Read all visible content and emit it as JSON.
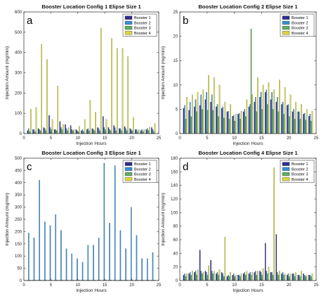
{
  "chart_data": [
    {
      "type": "bar",
      "panel_label": "a",
      "title": "Booster Location Config 1 Elipse Size 1",
      "xlabel": "Injection Hours",
      "ylabel": "Injection Amount (mg/min)",
      "xlim": [
        0,
        25
      ],
      "ylim": [
        0,
        600
      ],
      "xticks": [
        0,
        5,
        10,
        15,
        20,
        25
      ],
      "yticks": [
        0,
        100,
        200,
        300,
        400,
        500,
        600
      ],
      "legend_position": "top-right",
      "categories": [
        1,
        2,
        3,
        4,
        5,
        6,
        7,
        8,
        9,
        10,
        11,
        12,
        13,
        14,
        15,
        16,
        17,
        18,
        19,
        20,
        21,
        22,
        23,
        24
      ],
      "series": [
        {
          "name": "Booster 1",
          "color": "#2e2b8f",
          "values": [
            15,
            20,
            25,
            30,
            90,
            20,
            60,
            45,
            40,
            20,
            15,
            20,
            25,
            30,
            85,
            30,
            40,
            25,
            35,
            25,
            20,
            15,
            20,
            30
          ]
        },
        {
          "name": "Booster 2",
          "color": "#3a8fd0",
          "values": [
            25,
            20,
            20,
            25,
            30,
            20,
            30,
            25,
            20,
            15,
            20,
            25,
            20,
            25,
            30,
            20,
            30,
            25,
            25,
            20,
            20,
            20,
            25,
            20
          ]
        },
        {
          "name": "Booster 3",
          "color": "#5fae62",
          "values": [
            10,
            10,
            15,
            15,
            20,
            15,
            20,
            15,
            15,
            10,
            10,
            15,
            15,
            15,
            20,
            15,
            15,
            15,
            15,
            15,
            10,
            10,
            15,
            10
          ]
        },
        {
          "name": "Booster 4",
          "color": "#d6d640",
          "values": [
            120,
            130,
            440,
            365,
            70,
            235,
            45,
            30,
            20,
            35,
            70,
            165,
            105,
            520,
            70,
            470,
            420,
            420,
            380,
            80,
            20,
            20,
            30,
            50
          ]
        }
      ]
    },
    {
      "type": "bar",
      "panel_label": "b",
      "title": "Booster Location Config 2 Elipse Size 1",
      "xlabel": "Injection Hours",
      "ylabel": "Injection Amount (mg/min)",
      "xlim": [
        0,
        25
      ],
      "ylim": [
        0,
        25
      ],
      "xticks": [
        0,
        5,
        10,
        15,
        20,
        25
      ],
      "yticks": [
        0,
        5,
        10,
        15,
        20,
        25
      ],
      "legend_position": "top-right",
      "categories": [
        1,
        2,
        3,
        4,
        5,
        6,
        7,
        8,
        9,
        10,
        11,
        12,
        13,
        14,
        15,
        16,
        17,
        18,
        19,
        20,
        21,
        22,
        23,
        24
      ],
      "series": [
        {
          "name": "Booster 1",
          "color": "#2e2b8f",
          "values": [
            5.2,
            4.8,
            5.5,
            5.8,
            7.0,
            6.5,
            5.5,
            5.2,
            4.5,
            3.6,
            4.0,
            4.5,
            5.5,
            6.5,
            7.5,
            8.5,
            7.0,
            6.5,
            6.0,
            5.8,
            4.5,
            4.5,
            4.0,
            3.6
          ]
        },
        {
          "name": "Booster 2",
          "color": "#3a8fd0",
          "values": [
            5.8,
            6.5,
            7.0,
            8.0,
            8.5,
            8.0,
            6.0,
            5.5,
            4.6,
            3.8,
            4.2,
            5.0,
            6.0,
            7.5,
            8.5,
            9.0,
            8.5,
            7.5,
            6.5,
            6.0,
            5.0,
            4.5,
            4.2,
            4.0
          ]
        },
        {
          "name": "Booster 3",
          "color": "#5fae62",
          "values": [
            3.0,
            3.5,
            4.5,
            5.0,
            4.8,
            4.8,
            3.5,
            3.2,
            3.0,
            2.6,
            3.0,
            3.5,
            21.5,
            4.5,
            5.0,
            6.0,
            5.0,
            4.5,
            4.0,
            3.5,
            3.0,
            3.0,
            2.8,
            2.6
          ]
        },
        {
          "name": "Booster 4",
          "color": "#d6d640",
          "values": [
            7.5,
            8.0,
            8.5,
            9.0,
            12.0,
            11.5,
            10.0,
            6.5,
            6.0,
            4.0,
            4.6,
            7.0,
            8.0,
            11.5,
            10.0,
            10.5,
            9.0,
            11.0,
            9.5,
            8.0,
            6.5,
            6.0,
            5.0,
            4.6
          ]
        }
      ]
    },
    {
      "type": "bar",
      "panel_label": "c",
      "title": "Booster Location Config 3 Elipse Size 1",
      "xlabel": "Injection Hours",
      "ylabel": "Injection Amount (mg/min)",
      "xlim": [
        0,
        25
      ],
      "ylim": [
        0,
        500
      ],
      "xticks": [
        0,
        5,
        10,
        15,
        20,
        25
      ],
      "yticks": [
        0,
        50,
        100,
        150,
        200,
        250,
        300,
        350,
        400,
        450,
        500
      ],
      "legend_position": "top-right",
      "categories": [
        1,
        2,
        3,
        4,
        5,
        6,
        7,
        8,
        9,
        10,
        11,
        12,
        13,
        14,
        15,
        16,
        17,
        18,
        19,
        20,
        21,
        22,
        23,
        24
      ],
      "series": [
        {
          "name": "Booster 1",
          "color": "#2e2b8f",
          "values": [
            2,
            2,
            2,
            2,
            2,
            2,
            2,
            2,
            2,
            2,
            2,
            2,
            2,
            2,
            2,
            2,
            2,
            2,
            2,
            2,
            2,
            2,
            2,
            2
          ]
        },
        {
          "name": "Booster 2",
          "color": "#3a8fd0",
          "values": [
            195,
            175,
            410,
            240,
            225,
            270,
            205,
            130,
            110,
            90,
            75,
            145,
            145,
            175,
            480,
            235,
            470,
            205,
            130,
            300,
            185,
            90,
            90,
            115
          ]
        },
        {
          "name": "Booster 3",
          "color": "#5fae62",
          "values": [
            2,
            2,
            2,
            2,
            2,
            2,
            2,
            2,
            2,
            2,
            2,
            2,
            2,
            2,
            2,
            2,
            2,
            2,
            2,
            2,
            2,
            2,
            2,
            2
          ]
        },
        {
          "name": "Booster 4",
          "color": "#d6d640",
          "values": [
            2,
            2,
            2,
            2,
            2,
            2,
            2,
            2,
            2,
            2,
            2,
            2,
            2,
            2,
            2,
            2,
            2,
            2,
            2,
            2,
            2,
            2,
            2,
            2
          ]
        }
      ]
    },
    {
      "type": "bar",
      "panel_label": "d",
      "title": "Booster Location Config 4 Elipse Size 1",
      "xlabel": "Injection Hours",
      "ylabel": "Injection Amount (mg/min)",
      "xlim": [
        0,
        25
      ],
      "ylim": [
        0,
        180
      ],
      "xticks": [
        0,
        5,
        10,
        15,
        20,
        25
      ],
      "yticks": [
        0,
        20,
        40,
        60,
        80,
        100,
        120,
        140,
        160,
        180
      ],
      "legend_position": "top-right",
      "categories": [
        1,
        2,
        3,
        4,
        5,
        6,
        7,
        8,
        9,
        10,
        11,
        12,
        13,
        14,
        15,
        16,
        17,
        18,
        19,
        20,
        21,
        22,
        23,
        24
      ],
      "series": [
        {
          "name": "Booster 1",
          "color": "#2e2b8f",
          "values": [
            8,
            10,
            12,
            45,
            14,
            30,
            10,
            12,
            6,
            8,
            8,
            10,
            10,
            12,
            14,
            55,
            12,
            68,
            10,
            8,
            10,
            8,
            10,
            8
          ]
        },
        {
          "name": "Booster 2",
          "color": "#3a8fd0",
          "values": [
            10,
            12,
            14,
            14,
            12,
            14,
            12,
            10,
            8,
            10,
            8,
            12,
            12,
            14,
            12,
            14,
            12,
            12,
            12,
            10,
            10,
            8,
            8,
            8
          ]
        },
        {
          "name": "Booster 3",
          "color": "#5fae62",
          "values": [
            6,
            8,
            8,
            10,
            8,
            10,
            8,
            6,
            6,
            6,
            6,
            8,
            8,
            8,
            8,
            10,
            8,
            8,
            8,
            6,
            6,
            6,
            6,
            6
          ]
        },
        {
          "name": "Booster 4",
          "color": "#d6d640",
          "values": [
            10,
            14,
            16,
            12,
            22,
            14,
            16,
            64,
            12,
            8,
            10,
            14,
            12,
            14,
            18,
            20,
            166,
            14,
            10,
            10,
            12,
            14,
            8,
            10
          ]
        }
      ]
    }
  ]
}
